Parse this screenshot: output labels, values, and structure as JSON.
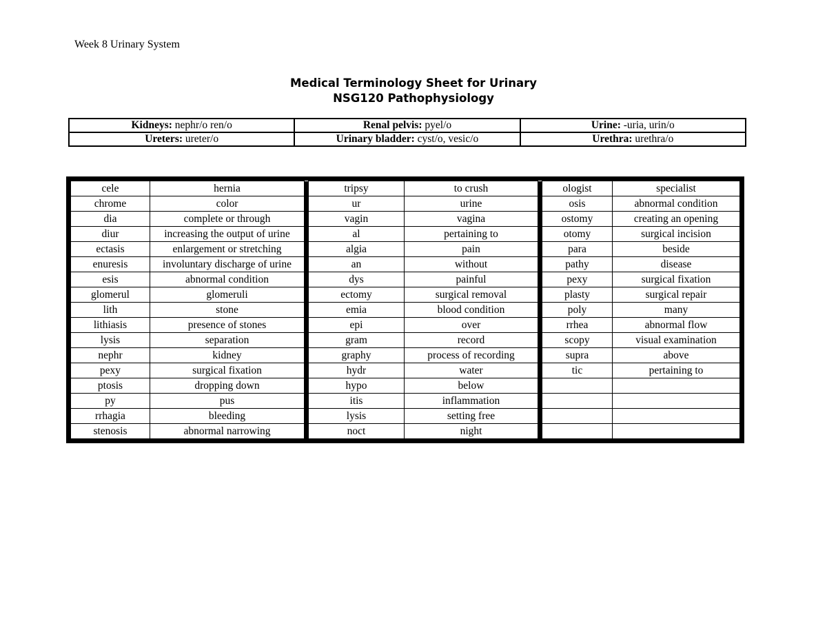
{
  "header": "Week 8 Urinary System",
  "title": "Medical Terminology Sheet for Urinary",
  "subtitle": "NSG120 Pathophysiology",
  "roots": [
    [
      {
        "label": "Kidneys:",
        "value": " nephr/o ren/o"
      },
      {
        "label": "Renal pelvis:",
        "value": " pyel/o"
      },
      {
        "label": "Urine:",
        "value": " -uria, urin/o"
      }
    ],
    [
      {
        "label": "Ureters:",
        "value": " ureter/o"
      },
      {
        "label": "Urinary bladder:",
        "value": " cyst/o, vesic/o"
      },
      {
        "label": "Urethra:",
        "value": " urethra/o"
      }
    ]
  ],
  "terms": [
    [
      "cele",
      "hernia",
      "tripsy",
      "to crush",
      "ologist",
      "specialist"
    ],
    [
      "chrome",
      "color",
      "ur",
      "urine",
      "osis",
      "abnormal condition"
    ],
    [
      "dia",
      "complete or through",
      "vagin",
      "vagina",
      "ostomy",
      "creating an opening"
    ],
    [
      "diur",
      "increasing the output of urine",
      "al",
      "pertaining to",
      "otomy",
      "surgical incision"
    ],
    [
      "ectasis",
      "enlargement or stretching",
      "algia",
      "pain",
      "para",
      "beside"
    ],
    [
      "enuresis",
      "involuntary discharge of urine",
      "an",
      "without",
      "pathy",
      "disease"
    ],
    [
      "esis",
      "abnormal condition",
      "dys",
      "painful",
      "pexy",
      "surgical fixation"
    ],
    [
      "glomerul",
      "glomeruli",
      "ectomy",
      "surgical removal",
      "plasty",
      "surgical repair"
    ],
    [
      "lith",
      "stone",
      "emia",
      "blood condition",
      "poly",
      "many"
    ],
    [
      "lithiasis",
      "presence of stones",
      "epi",
      "over",
      "rrhea",
      "abnormal flow"
    ],
    [
      "lysis",
      "separation",
      "gram",
      "record",
      "scopy",
      "visual examination"
    ],
    [
      "nephr",
      "kidney",
      "graphy",
      "process of recording",
      "supra",
      "above"
    ],
    [
      "pexy",
      "surgical fixation",
      "hydr",
      "water",
      "tic",
      "pertaining to"
    ],
    [
      "ptosis",
      "dropping down",
      "hypo",
      "below",
      "",
      ""
    ],
    [
      "py",
      "pus",
      "itis",
      "inflammation",
      "",
      ""
    ],
    [
      "rrhagia",
      "bleeding",
      "lysis",
      "setting free",
      "",
      ""
    ],
    [
      "stenosis",
      "abnormal narrowing",
      "noct",
      "night",
      "",
      ""
    ]
  ]
}
